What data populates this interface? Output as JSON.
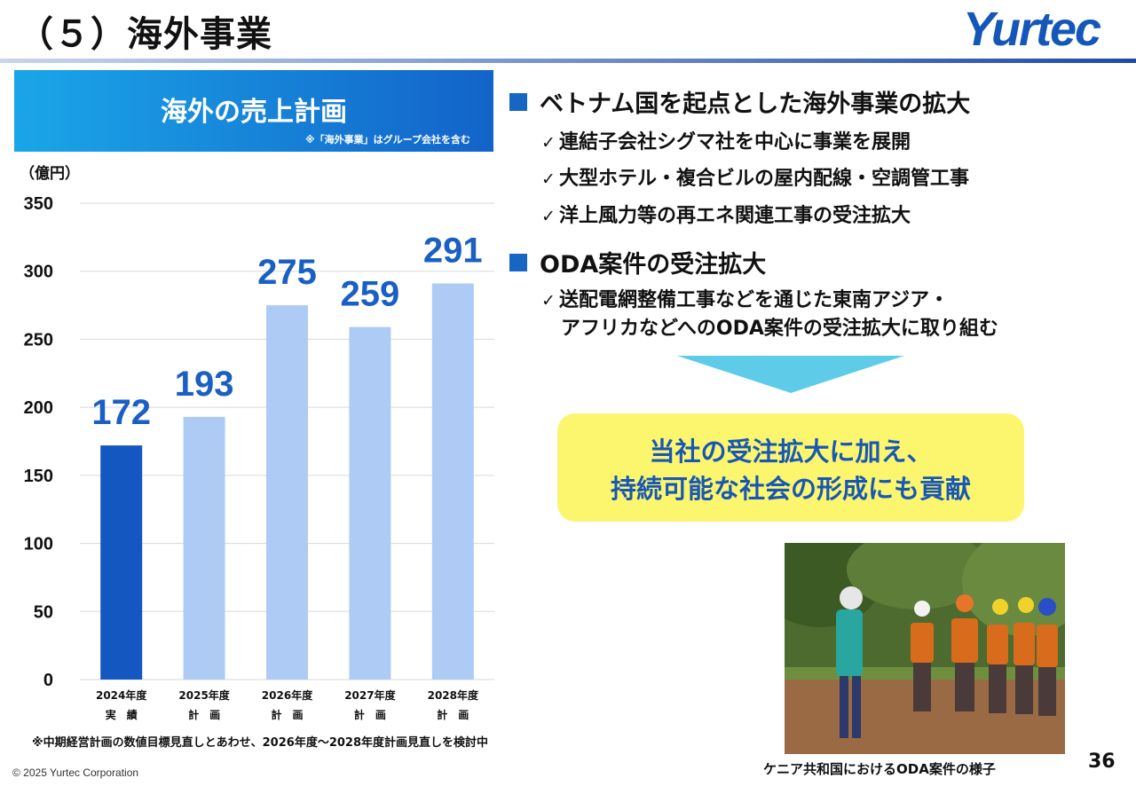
{
  "header": {
    "title": "（５）海外事業",
    "logo": "Yurtec"
  },
  "chart_panel": {
    "banner_title": "海外の売上計画",
    "banner_note": "※「海外事業」はグループ会社を含む",
    "footnote": "※中期経営計画の数値目標見直しとあわせ、2026年度～2028年度計画見直しを検討中"
  },
  "chart_data": {
    "type": "bar",
    "ylabel": "（億円）",
    "ylim": [
      0,
      350
    ],
    "yticks": [
      0,
      50,
      100,
      150,
      200,
      250,
      300,
      350
    ],
    "grid": true,
    "categories": [
      "2024年度",
      "2025年度",
      "2026年度",
      "2027年度",
      "2028年度"
    ],
    "sublabels": [
      "実　績",
      "計　画",
      "計　画",
      "計　画",
      "計　画"
    ],
    "values": [
      172,
      193,
      275,
      259,
      291
    ],
    "data_labels": [
      "172",
      "193",
      "275",
      "259",
      "291"
    ],
    "bar_colors": [
      "#1557c0",
      "#aecbf5",
      "#aecbf5",
      "#aecbf5",
      "#aecbf5"
    ],
    "label_color": "#1a5fc3"
  },
  "sections": {
    "vietnam": {
      "heading": "ベトナム国を起点とした海外事業の拡大",
      "bullets": [
        "連結子会社シグマ社を中心に事業を展開",
        "大型ホテル・複合ビルの屋内配線・空調管工事",
        "洋上風力等の再エネ関連工事の受注拡大"
      ]
    },
    "oda": {
      "heading": "ODA案件の受注拡大",
      "bullet_line1": "送配電網整備工事などを通じた東南アジア・",
      "bullet_line2": "アフリカなどへのODA案件の受注拡大に取り組む"
    }
  },
  "callout": {
    "line1": "当社の受注拡大に加え、",
    "line2": "持続可能な社会の形成にも貢献"
  },
  "check_mark": "✓",
  "photo_caption": "ケニア共和国におけるODA案件の様子",
  "page_number": "36",
  "copyright": "© 2025 Yurtec Corporation"
}
